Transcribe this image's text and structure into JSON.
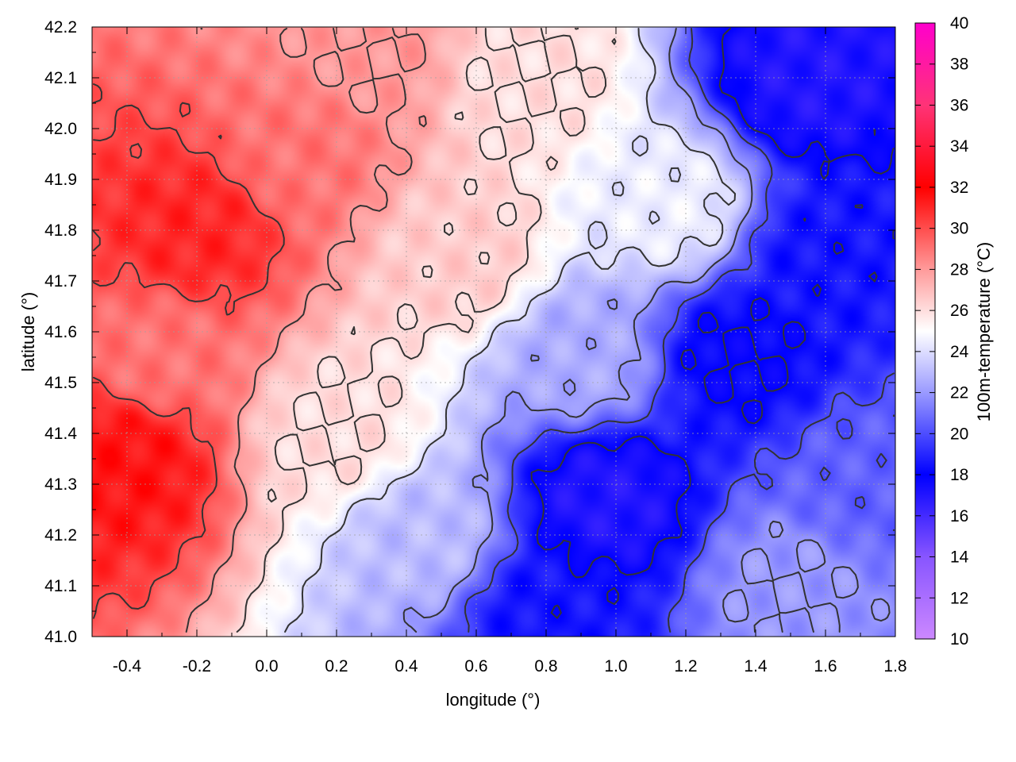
{
  "chart_data": {
    "type": "heatmap",
    "title": "",
    "xlabel": "longitude (°)",
    "ylabel": "latitude (°)",
    "colorbar_label": "100m-temperature (°C)",
    "xlim": [
      -0.5,
      1.8
    ],
    "ylim": [
      41.0,
      42.2
    ],
    "zlim": [
      10,
      40
    ],
    "x_ticks": [
      -0.4,
      -0.2,
      0.0,
      0.2,
      0.4,
      0.6,
      0.8,
      1.0,
      1.2,
      1.4,
      1.6,
      1.8
    ],
    "x_tick_labels": [
      "-0.4",
      "-0.2",
      "0.0",
      "0.2",
      "0.4",
      "0.6",
      "0.8",
      "1.0",
      "1.2",
      "1.4",
      "1.6",
      "1.8"
    ],
    "y_ticks": [
      41.0,
      41.1,
      41.2,
      41.3,
      41.4,
      41.5,
      41.6,
      41.7,
      41.8,
      41.9,
      42.0,
      42.1,
      42.2
    ],
    "y_tick_labels": [
      "41.0",
      "41.1",
      "41.2",
      "41.3",
      "41.4",
      "41.5",
      "41.6",
      "41.7",
      "41.8",
      "41.9",
      "42.0",
      "42.1",
      "42.2"
    ],
    "z_ticks": [
      10,
      12,
      14,
      16,
      18,
      20,
      22,
      24,
      26,
      28,
      30,
      32,
      34,
      36,
      38,
      40
    ],
    "z_tick_labels": [
      "10",
      "12",
      "14",
      "16",
      "18",
      "20",
      "22",
      "24",
      "26",
      "28",
      "30",
      "32",
      "34",
      "36",
      "38",
      "40"
    ],
    "grid": true,
    "colormap_stops": [
      {
        "value": 10,
        "color": "#cc88ff"
      },
      {
        "value": 14,
        "color": "#8855ff"
      },
      {
        "value": 18,
        "color": "#0000ff"
      },
      {
        "value": 22,
        "color": "#9a9aff"
      },
      {
        "value": 25,
        "color": "#ffffff"
      },
      {
        "value": 28,
        "color": "#ff9a9a"
      },
      {
        "value": 32,
        "color": "#ff0000"
      },
      {
        "value": 36,
        "color": "#ff3377"
      },
      {
        "value": 40,
        "color": "#ff00cc"
      }
    ],
    "field_description_points": [
      {
        "lon": -0.4,
        "lat": 41.35,
        "temp": 31.5
      },
      {
        "lon": -0.2,
        "lat": 41.8,
        "temp": 31
      },
      {
        "lon": -0.3,
        "lat": 41.55,
        "temp": 29
      },
      {
        "lon": 0.1,
        "lat": 41.95,
        "temp": 29
      },
      {
        "lon": 0.3,
        "lat": 42.15,
        "temp": 28
      },
      {
        "lon": 0.2,
        "lat": 41.4,
        "temp": 26
      },
      {
        "lon": 0.55,
        "lat": 41.75,
        "temp": 26.5
      },
      {
        "lon": 0.75,
        "lat": 42.1,
        "temp": 26
      },
      {
        "lon": 0.45,
        "lat": 41.2,
        "temp": 23
      },
      {
        "lon": 0.9,
        "lat": 41.55,
        "temp": 22.5
      },
      {
        "lon": 0.97,
        "lat": 41.27,
        "temp": 17
      },
      {
        "lon": 0.8,
        "lat": 41.05,
        "temp": 18.5
      },
      {
        "lon": 1.35,
        "lat": 41.55,
        "temp": 18
      },
      {
        "lon": 1.6,
        "lat": 41.75,
        "temp": 18.5
      },
      {
        "lon": 1.55,
        "lat": 42.1,
        "temp": 17
      },
      {
        "lon": 1.5,
        "lat": 41.1,
        "temp": 22
      },
      {
        "lon": 1.7,
        "lat": 41.3,
        "temp": 20.5
      },
      {
        "lon": 1.15,
        "lat": 41.85,
        "temp": 24.5
      }
    ]
  },
  "colors": {
    "axis": "#000000",
    "grid": "#a0a0a0",
    "contour": "#333333"
  }
}
